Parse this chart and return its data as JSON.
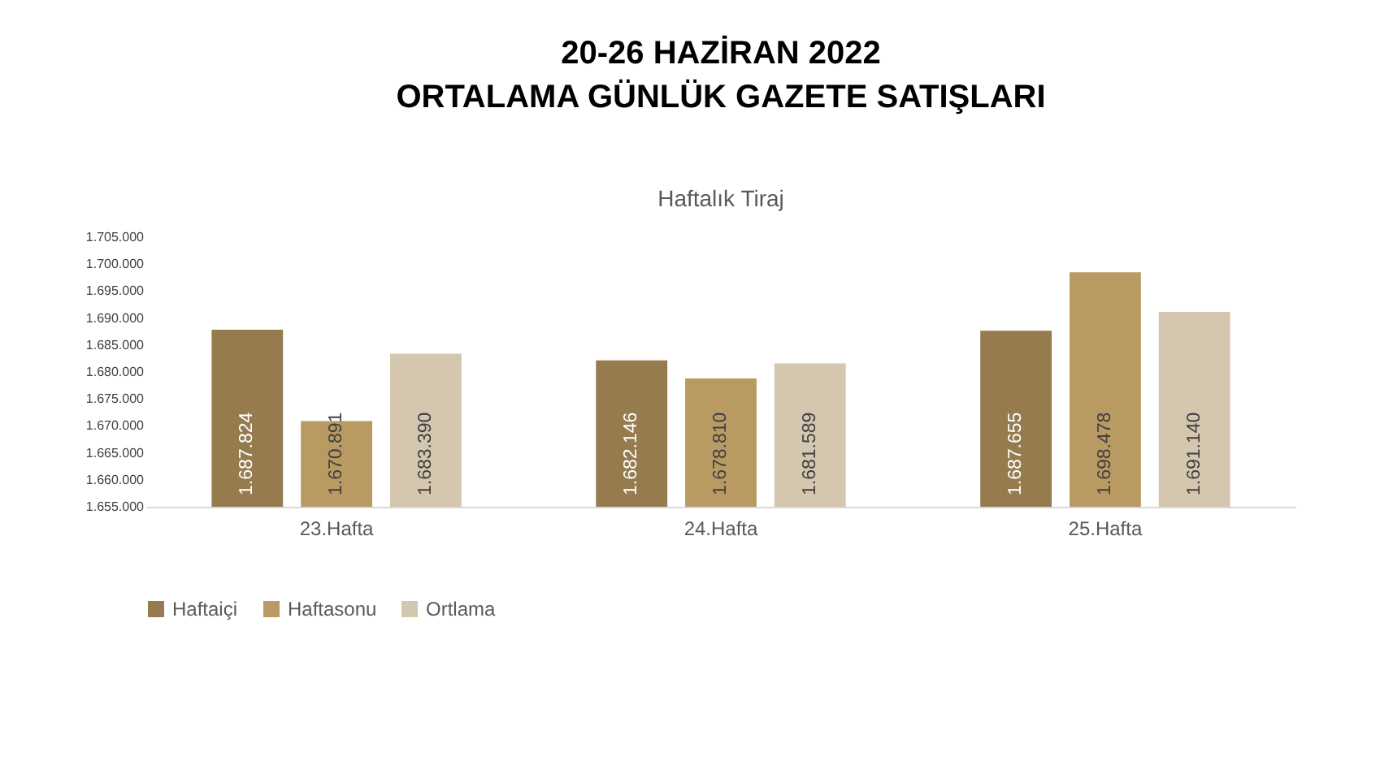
{
  "chart_data": {
    "type": "bar",
    "title": "20-26 HAZİRAN 2022\nORTALAMA GÜNLÜK GAZETE SATIŞLARI",
    "subtitle": "Haftalık Tiraj",
    "categories": [
      "23.Hafta",
      "24.Hafta",
      "25.Hafta"
    ],
    "series": [
      {
        "name": "Haftaiçi",
        "color": "#957b4e",
        "values": [
          1687824,
          1682146,
          1687655
        ],
        "value_labels": [
          "1.687.824",
          "1.682.146",
          "1.687.655"
        ]
      },
      {
        "name": "Haftasonu",
        "color": "#b99a62",
        "values": [
          1670891,
          1678810,
          1698478
        ],
        "value_labels": [
          "1.670.891",
          "1.678.810",
          "1.698.478"
        ]
      },
      {
        "name": "Ortlama",
        "color": "#d5c6b0",
        "values": [
          1683390,
          1681589,
          1691140
        ],
        "value_labels": [
          "1.683.390",
          "1.681.589",
          "1.691.140"
        ]
      }
    ],
    "ylim": [
      1655000,
      1705000
    ],
    "yticks": [
      {
        "value": 1655000,
        "label": "1.655.000"
      },
      {
        "value": 1660000,
        "label": "1.660.000"
      },
      {
        "value": 1665000,
        "label": "1.665.000"
      },
      {
        "value": 1670000,
        "label": "1.670.000"
      },
      {
        "value": 1675000,
        "label": "1.675.000"
      },
      {
        "value": 1680000,
        "label": "1.680.000"
      },
      {
        "value": 1685000,
        "label": "1.685.000"
      },
      {
        "value": 1690000,
        "label": "1.690.000"
      },
      {
        "value": 1695000,
        "label": "1.695.000"
      },
      {
        "value": 1700000,
        "label": "1.700.000"
      },
      {
        "value": 1705000,
        "label": "1.705.000"
      }
    ],
    "grid": false,
    "legend": "bottom"
  }
}
